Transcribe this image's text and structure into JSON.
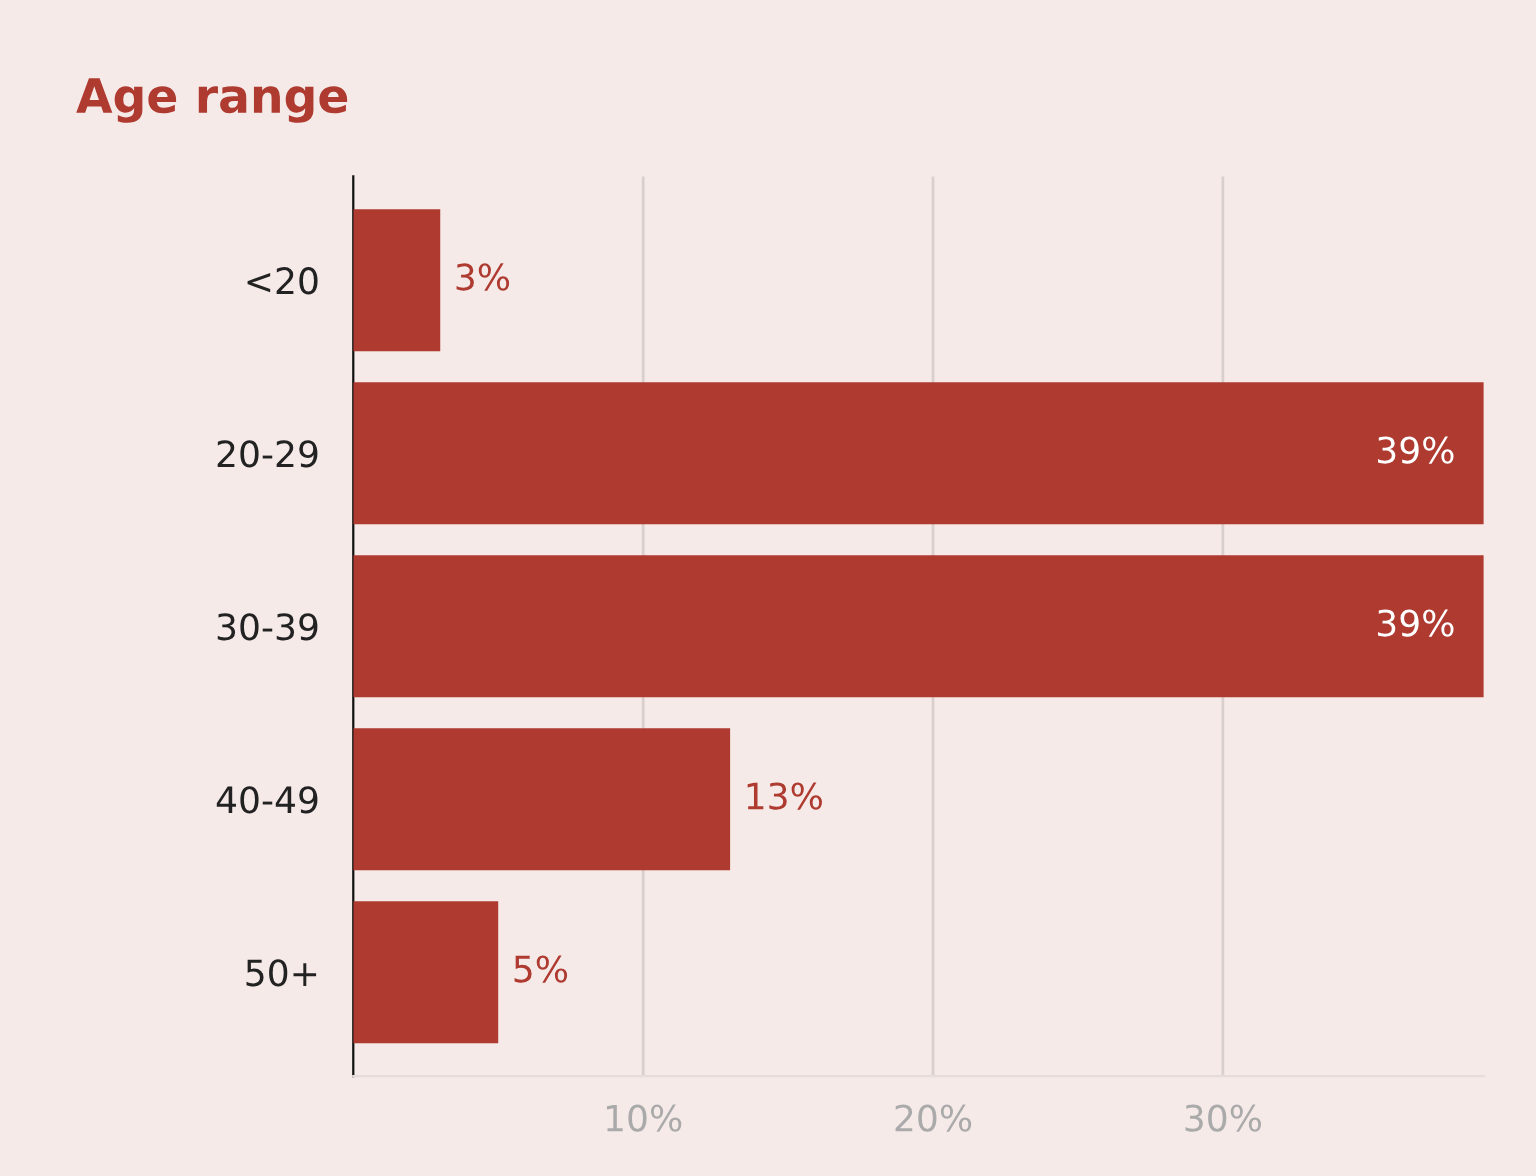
{
  "chart_data": {
    "type": "bar",
    "orientation": "horizontal",
    "title": "Age range",
    "categories": [
      "<20",
      "20-29",
      "30-39",
      "40-49",
      "50+"
    ],
    "values": [
      3,
      39,
      39,
      13,
      5
    ],
    "value_labels": [
      "3%",
      "39%",
      "39%",
      "13%",
      "5%"
    ],
    "color": "#ae3a30",
    "xlim": [
      0,
      39
    ],
    "xticks": [
      {
        "value": 10,
        "label": "10%"
      },
      {
        "value": 20,
        "label": "20%"
      },
      {
        "value": 30,
        "label": "30%"
      }
    ],
    "grid": "x",
    "legend": false
  }
}
